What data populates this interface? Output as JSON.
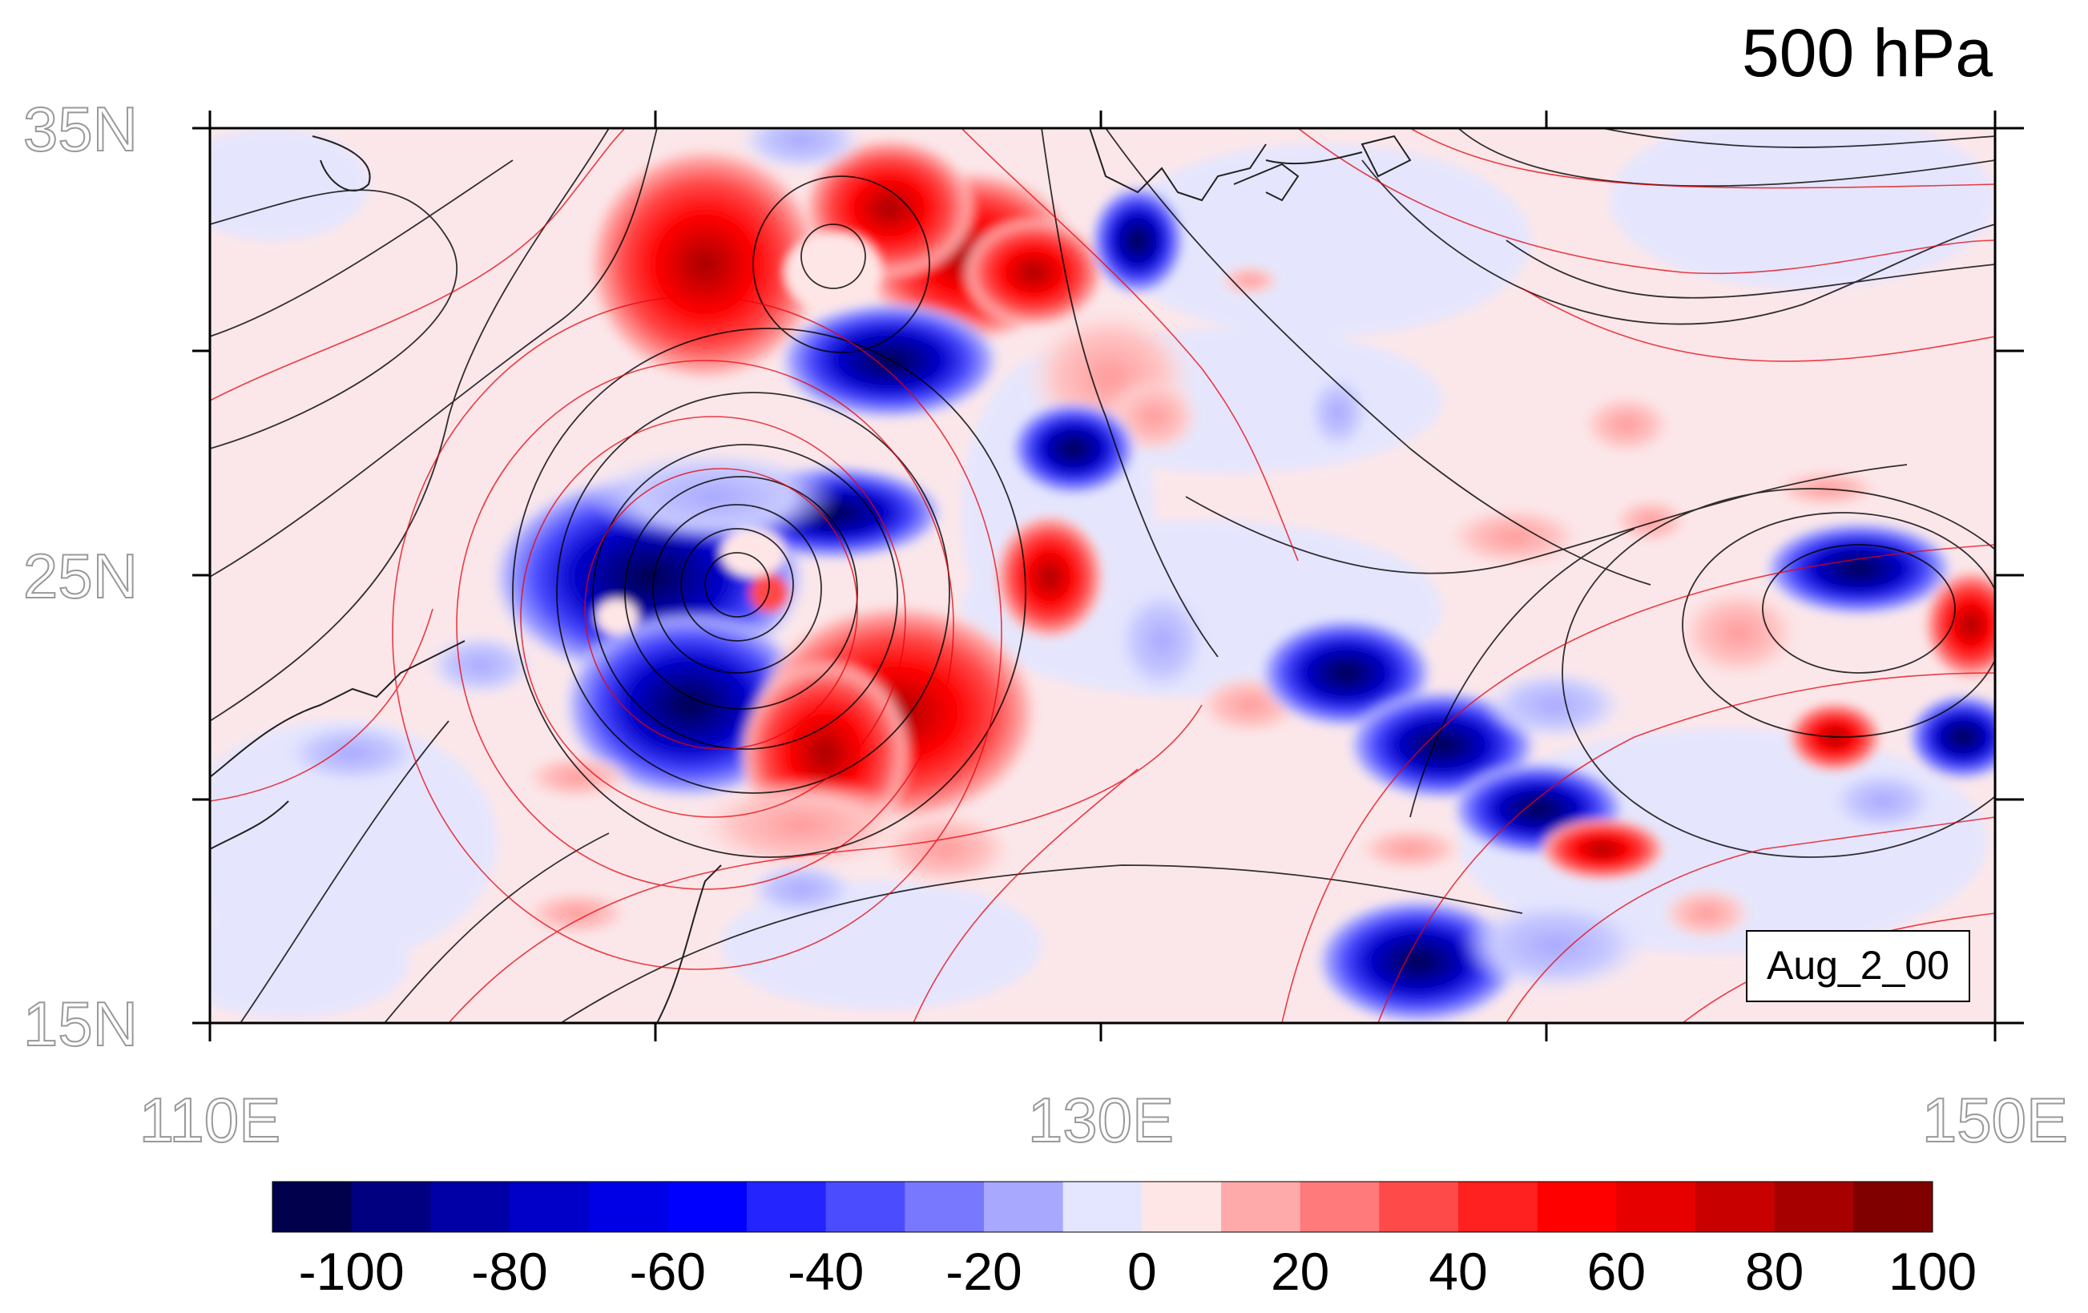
{
  "figure": {
    "title_right": "500 hPa",
    "time_label": "Aug_2_00"
  },
  "map": {
    "lon_range": [
      110,
      150
    ],
    "lat_range": [
      15,
      35
    ],
    "lat_labels": [
      "35N",
      "25N",
      "15N"
    ],
    "lon_labels": [
      "110E",
      "130E",
      "150E"
    ],
    "contour_colors": {
      "black": "#000000",
      "red": "#e8000b"
    }
  },
  "colorbar": {
    "tick_labels": [
      "-100",
      "-80",
      "-60",
      "-40",
      "-20",
      "0",
      "20",
      "40",
      "60",
      "80",
      "100"
    ],
    "colors": [
      "#00004d",
      "#000080",
      "#0000a6",
      "#0000c8",
      "#0000e6",
      "#0000ff",
      "#2424ff",
      "#4c4cff",
      "#7878ff",
      "#a8a8ff",
      "#e4e6ff",
      "#ffe6e6",
      "#ffaaaa",
      "#ff7a7a",
      "#ff4a4a",
      "#ff2020",
      "#ff0000",
      "#e60000",
      "#c80000",
      "#a60000",
      "#800000"
    ]
  }
}
